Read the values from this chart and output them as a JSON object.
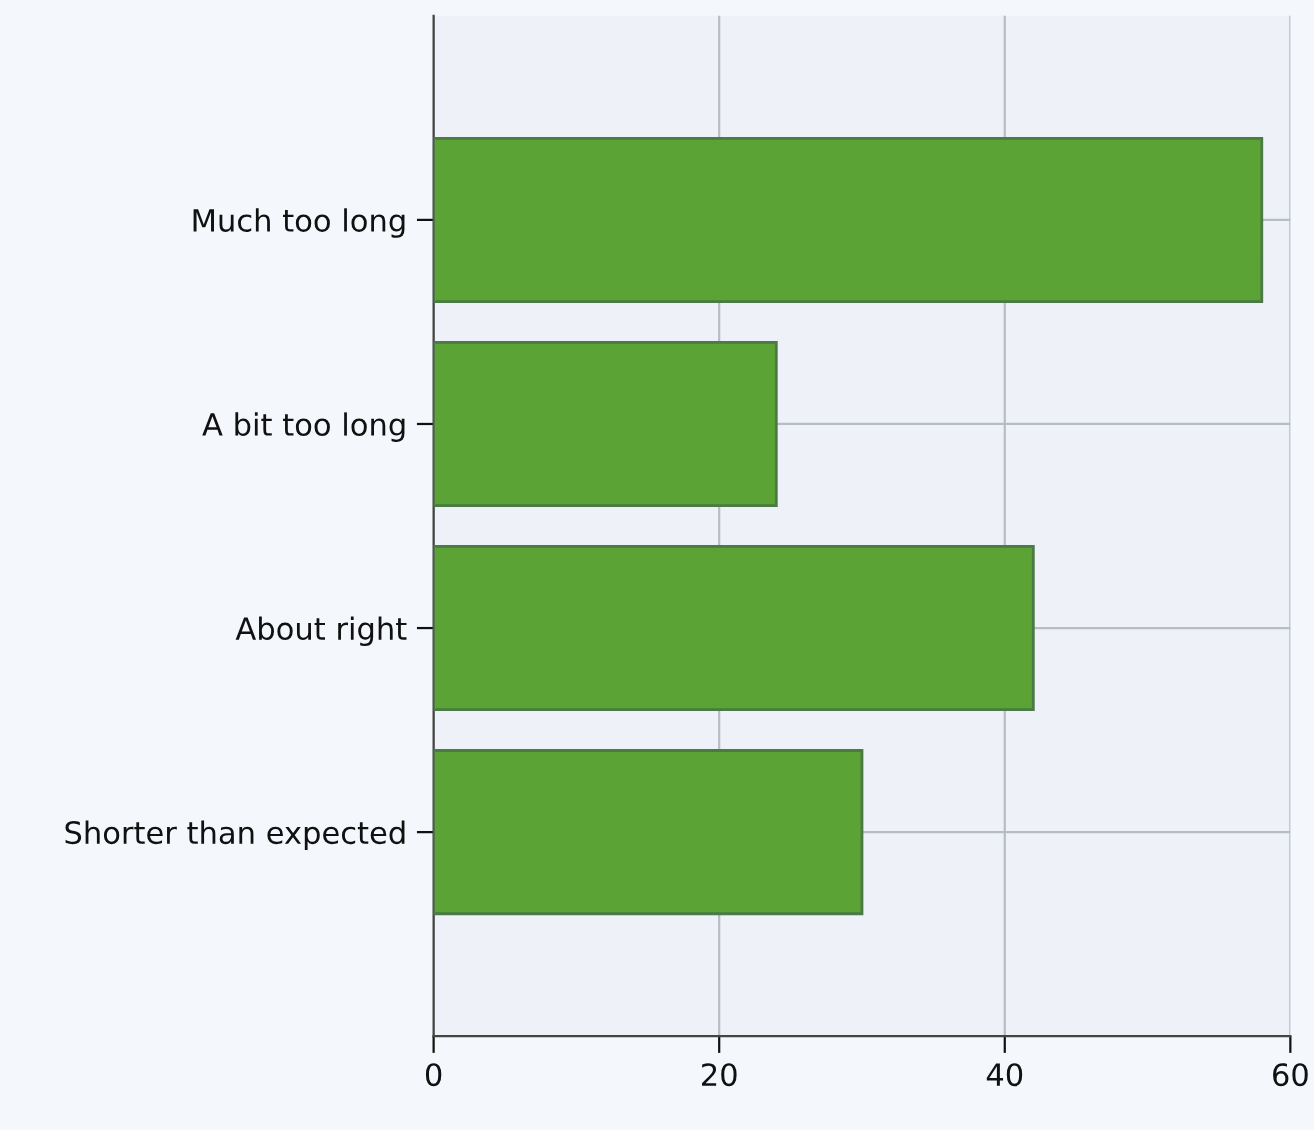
{
  "chart_data": {
    "type": "bar",
    "orientation": "horizontal",
    "categories": [
      "Much too long",
      "A bit too long",
      "About right",
      "Shorter than expected"
    ],
    "values": [
      58,
      24,
      42,
      30
    ],
    "color": "#5ba334",
    "xlim": [
      0,
      60
    ],
    "xticks": [
      0,
      20,
      40,
      60
    ],
    "grid": true
  }
}
